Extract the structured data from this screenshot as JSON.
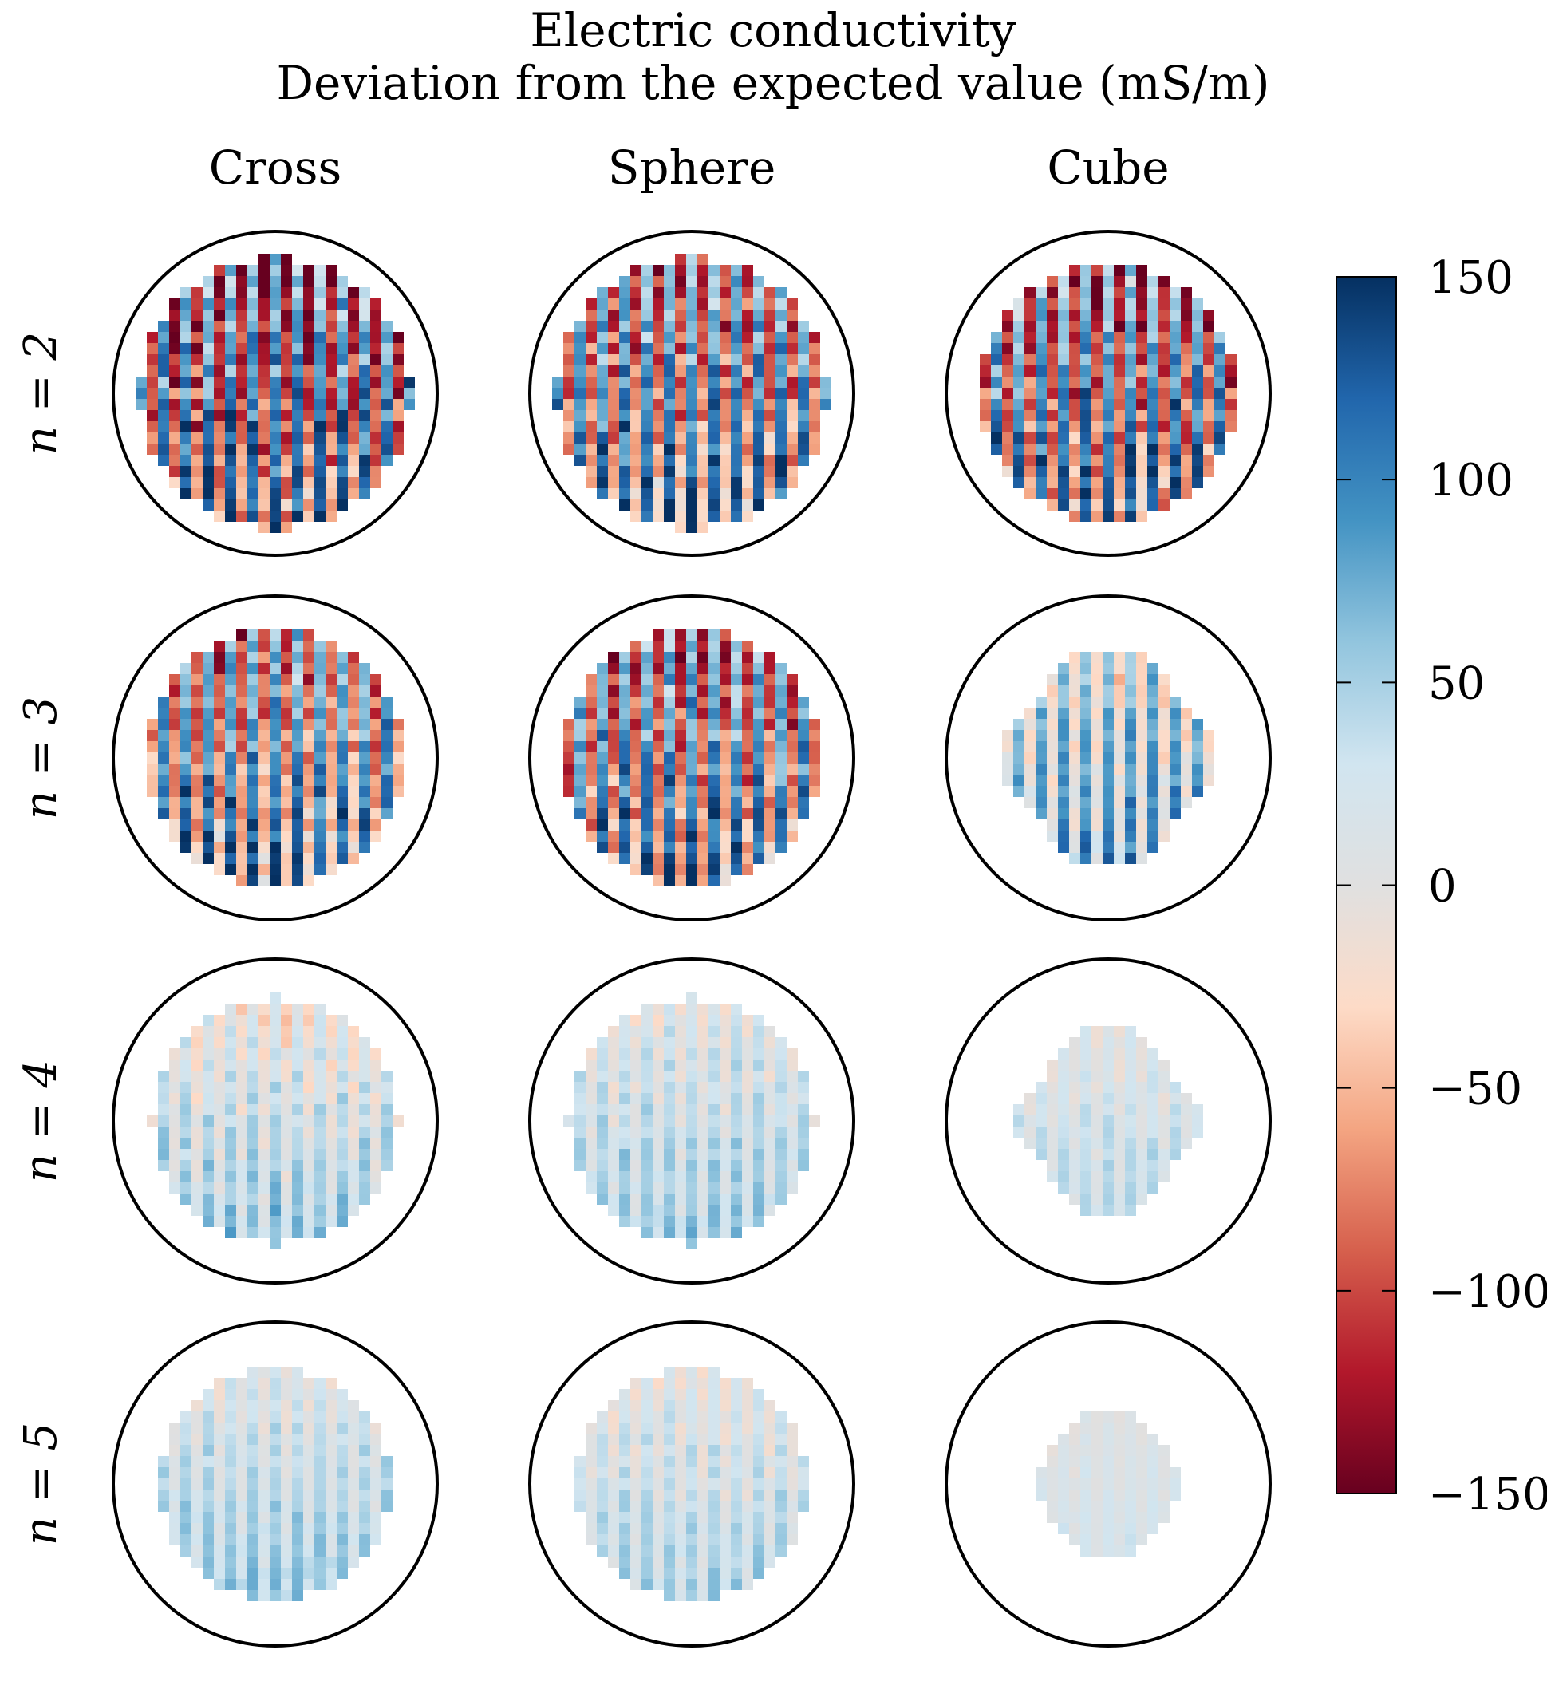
{
  "figure": {
    "title_line1": "Electric conductivity",
    "title_line2": "Deviation from the expected value (mS/m)"
  },
  "chart_data": {
    "type": "heatmap",
    "title": "Electric conductivity",
    "subtitle": "Deviation from the expected value (mS/m)",
    "columns": [
      "Cross",
      "Sphere",
      "Cube"
    ],
    "rows": [
      "n = 2",
      "n = 3",
      "n = 4",
      "n = 5"
    ],
    "colorbar": {
      "vmin": -150,
      "vmax": 150,
      "ticks": [
        150,
        100,
        50,
        0,
        -50,
        -100,
        -150
      ],
      "tick_labels": [
        "150",
        "100",
        "50",
        "0",
        "−50",
        "−100",
        "−150"
      ],
      "colormap": [
        "#67001f",
        "#b2182b",
        "#d6604d",
        "#f4a582",
        "#fddbc7",
        "#e0e0e0",
        "#d1e5f0",
        "#92c5de",
        "#4393c3",
        "#2166ac",
        "#053061"
      ],
      "colormap_used_range": "RdBu (red = negative, blue = positive)"
    },
    "panels": [
      {
        "row": "n = 2",
        "column": "Cross",
        "pattern": "alternating strong red/blue stripes",
        "approx_range": [
          -150,
          150
        ]
      },
      {
        "row": "n = 2",
        "column": "Sphere",
        "pattern": "mixed light blue/red, strong blue at bottom",
        "approx_range": [
          -120,
          140
        ]
      },
      {
        "row": "n = 2",
        "column": "Cube",
        "pattern": "vertical red/blue stripes",
        "approx_range": [
          -140,
          140
        ]
      },
      {
        "row": "n = 3",
        "column": "Cross",
        "pattern": "vertical stripes, moderate",
        "approx_range": [
          -110,
          140
        ]
      },
      {
        "row": "n = 3",
        "column": "Sphere",
        "pattern": "vertical stripes, red on left",
        "approx_range": [
          -130,
          140
        ]
      },
      {
        "row": "n = 3",
        "column": "Cube",
        "pattern": "light blue, weak stripes",
        "approx_range": [
          -40,
          110
        ]
      },
      {
        "row": "n = 4",
        "column": "Cross",
        "pattern": "light pink center, light blue edges",
        "approx_range": [
          -60,
          100
        ]
      },
      {
        "row": "n = 4",
        "column": "Sphere",
        "pattern": "light pink center, light blue edges",
        "approx_range": [
          -40,
          90
        ]
      },
      {
        "row": "n = 4",
        "column": "Cube",
        "pattern": "near zero, light",
        "approx_range": [
          -30,
          70
        ]
      },
      {
        "row": "n = 5",
        "column": "Cross",
        "pattern": "light blue, faint stripes",
        "approx_range": [
          -30,
          90
        ]
      },
      {
        "row": "n = 5",
        "column": "Sphere",
        "pattern": "light pink center, light blue bottom",
        "approx_range": [
          -40,
          80
        ]
      },
      {
        "row": "n = 5",
        "column": "Cube",
        "pattern": "near zero, very light",
        "approx_range": [
          -15,
          40
        ]
      }
    ]
  }
}
